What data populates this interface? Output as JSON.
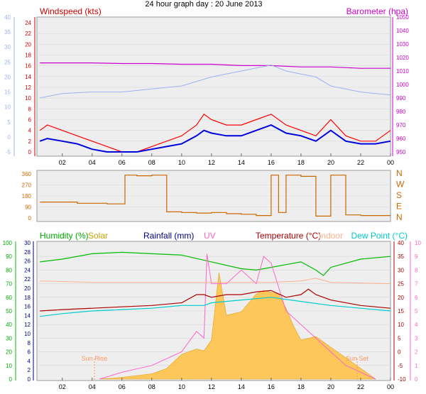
{
  "title": "24 hour graph day : 20 June 2013",
  "x_ticks": [
    "02",
    "04",
    "06",
    "08",
    "10",
    "12",
    "14",
    "16",
    "18",
    "20",
    "22",
    "00"
  ],
  "sun_rise_label": "Sun Rise",
  "sun_set_label": "Sun Set",
  "colors": {
    "wind": "#cc0000",
    "gust": "#ff0000",
    "avgwind": "#0000dd",
    "baro": "#cc00cc",
    "temp_baro_line": "#9fb2ef",
    "direction": "#cc6600",
    "humidity": "#00bb00",
    "solar": "#ffc040",
    "rain": "#000080",
    "uv": "#ff66cc",
    "temperature": "#aa0000",
    "indoor": "#ffb090",
    "dewpoint": "#00cccc",
    "chart_bg": "#eeeeee"
  },
  "chart_data": [
    {
      "type": "line",
      "labels": {
        "left": "Windspeed (kts)",
        "right": "Barometer (hpa)"
      },
      "wind_ticks": [
        "24",
        "22",
        "20",
        "18",
        "16",
        "14",
        "12",
        "10",
        "8",
        "6",
        "4",
        "2",
        "0"
      ],
      "ylim_wind": [
        0,
        25
      ],
      "baro_ticks": [
        "1050",
        "1040",
        "1030",
        "1020",
        "1010",
        "1000",
        "990",
        "980",
        "970",
        "960",
        "950"
      ],
      "ylim_baro": [
        947,
        1053
      ],
      "outer_ticks": [
        "40",
        "35",
        "30",
        "25",
        "20",
        "15",
        "10",
        "5",
        "0",
        "-5"
      ],
      "ylim_outer": [
        -7,
        42
      ],
      "series": [
        {
          "key": "gust",
          "x": [
            0.5,
            1,
            2,
            3,
            4,
            5,
            6,
            7,
            8,
            9,
            10,
            11,
            11.5,
            12,
            13,
            14,
            15,
            16,
            17,
            18,
            19,
            20,
            21,
            22,
            23,
            24
          ],
          "y": [
            4,
            5,
            4,
            3,
            2,
            1,
            0,
            0,
            1,
            2,
            3,
            5,
            7,
            6,
            5,
            5,
            6,
            7,
            5,
            4,
            3,
            6,
            3,
            2,
            2,
            4
          ]
        },
        {
          "key": "avgwind",
          "x": [
            0.5,
            1,
            2,
            3,
            4,
            5,
            6,
            7,
            8,
            9,
            10,
            11,
            11.5,
            12,
            13,
            14,
            15,
            16,
            17,
            18,
            19,
            20,
            21,
            22,
            23,
            24
          ],
          "y": [
            2,
            2.5,
            2,
            1.5,
            0.5,
            0,
            0,
            0,
            0.5,
            1,
            1.5,
            3,
            4,
            3.5,
            3,
            3,
            4,
            5,
            3.5,
            3,
            2,
            4,
            2,
            1.5,
            1.5,
            2
          ]
        },
        {
          "key": "baro",
          "x": [
            0.5,
            2,
            4,
            6,
            8,
            10,
            12,
            14,
            16,
            18,
            20,
            22,
            24
          ],
          "y": [
            1016,
            1016,
            1016,
            1015.5,
            1015.5,
            1015,
            1015,
            1014,
            1014,
            1013,
            1013,
            1012,
            1012
          ]
        },
        {
          "key": "outer",
          "x": [
            0.5,
            2,
            4,
            6,
            8,
            10,
            12,
            14,
            15,
            16,
            17,
            18,
            19,
            20,
            22,
            24
          ],
          "y": [
            13,
            14.5,
            15,
            15,
            16,
            17,
            20,
            22,
            23,
            24,
            22,
            21,
            20,
            17,
            15,
            14
          ]
        }
      ]
    },
    {
      "type": "line",
      "ticks": [
        "360",
        "270",
        "180",
        "90",
        "0"
      ],
      "compass": [
        "N",
        "W",
        "S",
        "E",
        "N"
      ],
      "ylim": [
        0,
        360
      ],
      "series": [
        {
          "key": "direction",
          "x": [
            0.5,
            2,
            3,
            4,
            5,
            6,
            6.2,
            7,
            8,
            8.5,
            9,
            9.5,
            10,
            11,
            12,
            13,
            14,
            15,
            16,
            16.5,
            17,
            18,
            19,
            20,
            21,
            22,
            23,
            24
          ],
          "y": [
            130,
            130,
            120,
            120,
            115,
            115,
            350,
            345,
            350,
            350,
            50,
            50,
            45,
            40,
            45,
            35,
            30,
            20,
            350,
            45,
            350,
            340,
            15,
            350,
            25,
            20,
            20,
            20
          ]
        }
      ]
    },
    {
      "type": "line",
      "labels": {
        "humidity": "Humidity (%)",
        "solar": "Solar",
        "rain": "Rainfall (mm)",
        "uv": "UV",
        "temp": "Temperature (°C)",
        "indoor": "Indoor",
        "dew": "Dew Point (°C)"
      },
      "hum_ticks": [
        "100",
        "90",
        "80",
        "70",
        "60",
        "50",
        "40",
        "30",
        "20",
        "10",
        "0"
      ],
      "ylim_hum": [
        0,
        100
      ],
      "rain_ticks": [
        "30",
        "28",
        "26",
        "24",
        "22",
        "20",
        "18",
        "16",
        "14",
        "12",
        "10",
        "8",
        "6",
        "4",
        "2",
        "0"
      ],
      "temp_ticks": [
        "40",
        "35",
        "30",
        "25",
        "20",
        "15",
        "10",
        "5",
        "0",
        "-5",
        "-10"
      ],
      "ylim_temp": [
        -10,
        40
      ],
      "uv_ticks": [
        "10",
        "9",
        "8",
        "7",
        "6",
        "5",
        "4",
        "3",
        "2",
        "1",
        "0"
      ],
      "series": [
        {
          "key": "humidity",
          "x": [
            0.5,
            2,
            4,
            6,
            8,
            10,
            12,
            14,
            15,
            16,
            17,
            18,
            19,
            19.5,
            20,
            22,
            24
          ],
          "y": [
            86,
            88,
            92,
            93,
            92,
            91,
            86,
            81,
            80,
            82,
            84,
            86,
            80,
            76,
            82,
            88,
            90
          ]
        },
        {
          "key": "solar",
          "x": [
            4.5,
            6,
            8,
            9,
            10,
            11,
            11.5,
            12,
            12.5,
            13,
            14,
            15,
            15.5,
            16,
            16.5,
            17,
            17.5,
            18,
            19,
            20,
            21,
            22,
            23
          ],
          "y": [
            0,
            1,
            3,
            6,
            14,
            17,
            16,
            22,
            60,
            36,
            38,
            48,
            50,
            49,
            48,
            40,
            30,
            22,
            24,
            18,
            12,
            6,
            0
          ]
        },
        {
          "key": "uv",
          "x": [
            4.5,
            6,
            8,
            10,
            11,
            11.5,
            11.7,
            12,
            13,
            14,
            15,
            15.5,
            16,
            17,
            18,
            19,
            20,
            21,
            22,
            23
          ],
          "y": [
            0,
            0.5,
            1,
            2,
            3.5,
            3,
            9.2,
            7,
            7,
            8,
            7,
            9,
            8.5,
            5,
            4,
            3,
            2,
            1,
            0.5,
            0
          ]
        },
        {
          "key": "temperature",
          "x": [
            0.5,
            2,
            4,
            6,
            8,
            10,
            11,
            11.5,
            12,
            13,
            14,
            15,
            16,
            17,
            18,
            18.5,
            19,
            20,
            22,
            24
          ],
          "y": [
            15,
            15.5,
            16,
            16.5,
            17,
            18,
            21,
            21,
            20,
            21,
            21,
            22,
            22.5,
            20,
            21,
            23,
            21,
            19,
            17,
            16
          ]
        },
        {
          "key": "indoor",
          "x": [
            0.5,
            4,
            8,
            12,
            16,
            18,
            19,
            20,
            24
          ],
          "y": [
            26,
            25.5,
            25.5,
            25.5,
            25.5,
            26,
            27,
            25.5,
            25
          ]
        },
        {
          "key": "dewpoint",
          "x": [
            0.5,
            2,
            4,
            6,
            8,
            10,
            11.5,
            12,
            14,
            16,
            18,
            20,
            22,
            24
          ],
          "y": [
            13,
            14,
            15,
            15.5,
            16,
            17,
            17,
            18,
            19,
            20,
            18.5,
            17,
            16,
            15
          ]
        }
      ]
    }
  ]
}
